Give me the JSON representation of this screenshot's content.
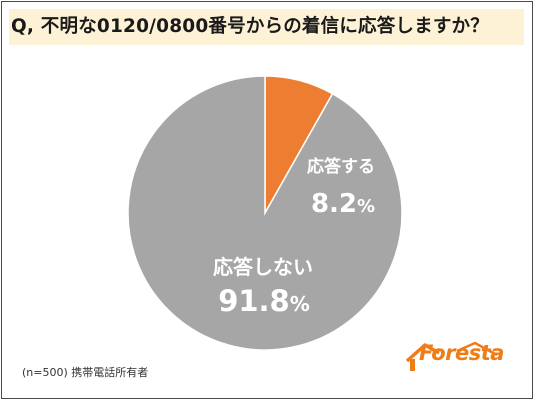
{
  "title": "Q, 不明な0120/0800番号からの着信に応答しますか？",
  "note": "(n=500) 携帯電話所有者",
  "logo_text": "Foresta",
  "colors": {
    "respond": "#ed7d31",
    "not_respond": "#a6a6a6",
    "title_bg": "#fdf1d6",
    "label_text": "#ffffff",
    "logo": "#f07c16"
  },
  "chart_data": {
    "type": "pie",
    "title": "Q, 不明な0120/0800番号からの着信に応答しますか？",
    "slices": [
      {
        "label": "応答する",
        "value": 8.2,
        "display": "8.2",
        "unit": "%"
      },
      {
        "label": "応答しない",
        "value": 91.8,
        "display": "91.8",
        "unit": "%"
      }
    ],
    "start_angle": "12 o'clock",
    "direction": "clockwise"
  }
}
